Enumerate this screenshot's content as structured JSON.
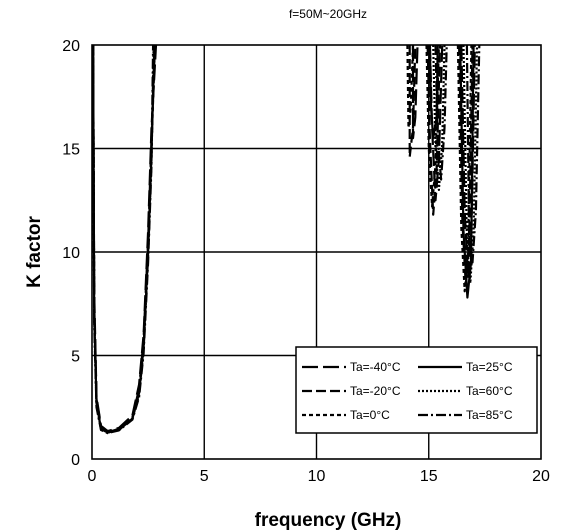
{
  "chart_data": {
    "type": "line",
    "title": "f=50M~20GHz",
    "xlabel": "frequency (GHz)",
    "ylabel": "K factor",
    "xlim": [
      0,
      20
    ],
    "ylim": [
      0,
      20
    ],
    "xticks": [
      "0",
      "5",
      "10",
      "15",
      "20"
    ],
    "yticks": [
      "0",
      "5",
      "10",
      "15",
      "20"
    ],
    "grid": true,
    "legend_position": "lower-right",
    "series": [
      {
        "name": "Ta=-40°C",
        "dash": "long-dash",
        "segments": [
          [
            [
              0.05,
              20
            ],
            [
              0.1,
              8
            ],
            [
              0.2,
              3
            ],
            [
              0.4,
              1.6
            ],
            [
              0.7,
              1.35
            ],
            [
              1.2,
              1.5
            ],
            [
              1.8,
              2.1
            ],
            [
              2.1,
              3.6
            ],
            [
              2.3,
              6
            ],
            [
              2.5,
              11
            ],
            [
              2.65,
              16
            ],
            [
              2.85,
              20
            ]
          ],
          [
            [
              14.3,
              20
            ],
            [
              14.3,
              15.5
            ],
            [
              14.4,
              16.5
            ],
            [
              14.5,
              20
            ]
          ],
          [
            [
              15.05,
              20
            ],
            [
              15.15,
              16
            ],
            [
              15.3,
              12.5
            ],
            [
              15.45,
              14.5
            ],
            [
              15.6,
              20
            ]
          ],
          [
            [
              16.45,
              20
            ],
            [
              16.6,
              12
            ],
            [
              16.75,
              8.8
            ],
            [
              16.9,
              11
            ],
            [
              17.05,
              20
            ]
          ]
        ]
      },
      {
        "name": "Ta=-20°C",
        "dash": "dash",
        "segments": [
          [
            [
              0.05,
              20
            ],
            [
              0.1,
              7.5
            ],
            [
              0.2,
              2.9
            ],
            [
              0.4,
              1.55
            ],
            [
              0.7,
              1.3
            ],
            [
              1.2,
              1.45
            ],
            [
              1.8,
              2
            ],
            [
              2.1,
              3.4
            ],
            [
              2.3,
              5.8
            ],
            [
              2.5,
              10.5
            ],
            [
              2.65,
              15.5
            ],
            [
              2.8,
              20
            ]
          ],
          [
            [
              14.15,
              20
            ],
            [
              14.15,
              14.6
            ],
            [
              14.3,
              16
            ],
            [
              14.4,
              20
            ]
          ],
          [
            [
              14.95,
              20
            ],
            [
              15.05,
              15.5
            ],
            [
              15.2,
              11.8
            ],
            [
              15.35,
              14
            ],
            [
              15.5,
              20
            ]
          ],
          [
            [
              16.35,
              20
            ],
            [
              16.5,
              11.5
            ],
            [
              16.65,
              8.4
            ],
            [
              16.8,
              10.5
            ],
            [
              16.95,
              20
            ]
          ]
        ]
      },
      {
        "name": "Ta=0°C",
        "dash": "dot",
        "segments": [
          [
            [
              0.05,
              20
            ],
            [
              0.1,
              7.2
            ],
            [
              0.2,
              2.8
            ],
            [
              0.4,
              1.5
            ],
            [
              0.7,
              1.3
            ],
            [
              1.2,
              1.45
            ],
            [
              1.8,
              2
            ],
            [
              2.1,
              3.3
            ],
            [
              2.3,
              5.6
            ],
            [
              2.5,
              10.2
            ],
            [
              2.65,
              15
            ],
            [
              2.8,
              20
            ]
          ],
          [
            [
              14.05,
              20
            ],
            [
              14.1,
              16
            ],
            [
              14.2,
              17
            ],
            [
              14.3,
              20
            ]
          ],
          [
            [
              14.9,
              20
            ],
            [
              15.0,
              15
            ],
            [
              15.15,
              12.2
            ],
            [
              15.3,
              14.2
            ],
            [
              15.45,
              20
            ]
          ],
          [
            [
              16.3,
              20
            ],
            [
              16.45,
              11.2
            ],
            [
              16.6,
              8.1
            ],
            [
              16.75,
              10
            ],
            [
              16.9,
              20
            ]
          ]
        ]
      },
      {
        "name": "Ta=25°C",
        "dash": "solid",
        "segments": [
          [
            [
              0.05,
              20
            ],
            [
              0.1,
              7
            ],
            [
              0.2,
              2.7
            ],
            [
              0.4,
              1.45
            ],
            [
              0.7,
              1.28
            ],
            [
              1.2,
              1.4
            ],
            [
              1.8,
              1.95
            ],
            [
              2.1,
              3.2
            ],
            [
              2.3,
              5.4
            ],
            [
              2.5,
              10
            ],
            [
              2.65,
              14.8
            ],
            [
              2.78,
              20
            ]
          ],
          [
            [
              15.05,
              20
            ],
            [
              15.1,
              17
            ],
            [
              15.2,
              15.5
            ],
            [
              15.35,
              16.5
            ],
            [
              15.4,
              20
            ]
          ],
          [
            [
              16.4,
              20
            ],
            [
              16.55,
              11
            ],
            [
              16.72,
              7.8
            ],
            [
              16.88,
              9.5
            ],
            [
              17.0,
              20
            ]
          ]
        ]
      },
      {
        "name": "Ta=60°C",
        "dash": "short-dot",
        "segments": [
          [
            [
              0.05,
              20
            ],
            [
              0.1,
              6.8
            ],
            [
              0.2,
              2.6
            ],
            [
              0.4,
              1.45
            ],
            [
              0.7,
              1.28
            ],
            [
              1.2,
              1.4
            ],
            [
              1.8,
              1.95
            ],
            [
              2.1,
              3.1
            ],
            [
              2.3,
              5.3
            ],
            [
              2.5,
              9.8
            ],
            [
              2.65,
              14.5
            ],
            [
              2.75,
              20
            ]
          ],
          [
            [
              15.2,
              20
            ],
            [
              15.3,
              15
            ],
            [
              15.45,
              13
            ],
            [
              15.6,
              15.2
            ],
            [
              15.7,
              20
            ]
          ],
          [
            [
              16.55,
              20
            ],
            [
              16.7,
              10.5
            ],
            [
              16.85,
              8.5
            ],
            [
              17.0,
              11
            ],
            [
              17.15,
              20
            ]
          ]
        ]
      },
      {
        "name": "Ta=85°C",
        "dash": "dash-dot",
        "segments": [
          [
            [
              0.05,
              20
            ],
            [
              0.1,
              6.5
            ],
            [
              0.2,
              2.5
            ],
            [
              0.4,
              1.4
            ],
            [
              0.7,
              1.25
            ],
            [
              1.2,
              1.38
            ],
            [
              1.8,
              1.9
            ],
            [
              2.1,
              3
            ],
            [
              2.3,
              5.1
            ],
            [
              2.5,
              9.5
            ],
            [
              2.65,
              14.2
            ],
            [
              2.72,
              20
            ]
          ],
          [
            [
              15.3,
              20
            ],
            [
              15.4,
              15.5
            ],
            [
              15.55,
              13.5
            ],
            [
              15.7,
              16
            ],
            [
              15.8,
              20
            ]
          ],
          [
            [
              16.7,
              20
            ],
            [
              16.8,
              10.5
            ],
            [
              16.95,
              9.5
            ],
            [
              17.1,
              12
            ],
            [
              17.25,
              20
            ]
          ]
        ]
      }
    ]
  }
}
